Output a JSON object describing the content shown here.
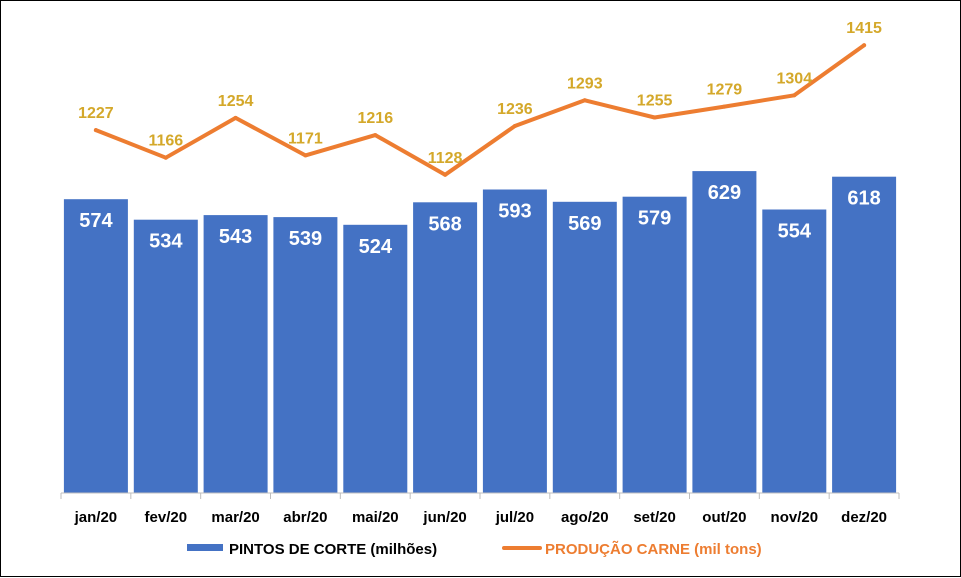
{
  "chart_data": {
    "type": "bar",
    "categories": [
      "jan/20",
      "fev/20",
      "mar/20",
      "abr/20",
      "mai/20",
      "jun/20",
      "jul/20",
      "ago/20",
      "set/20",
      "out/20",
      "nov/20",
      "dez/20"
    ],
    "series": [
      {
        "name": "PINTOS DE CORTE (milhões)",
        "type": "bar",
        "values": [
          574,
          534,
          543,
          539,
          524,
          568,
          593,
          569,
          579,
          629,
          554,
          618
        ],
        "color": "#4472C4",
        "label_color": "#ffffff"
      },
      {
        "name": "PRODUÇÃO CARNE (mil tons)",
        "type": "line",
        "values": [
          1227,
          1166,
          1254,
          1171,
          1216,
          1128,
          1236,
          1293,
          1255,
          1279,
          1304,
          1415
        ],
        "color": "#ED7D31",
        "label_color": "#D4A82A"
      }
    ],
    "title": "",
    "xlabel": "",
    "ylabel": "",
    "legend": "bottom",
    "grid": false
  }
}
